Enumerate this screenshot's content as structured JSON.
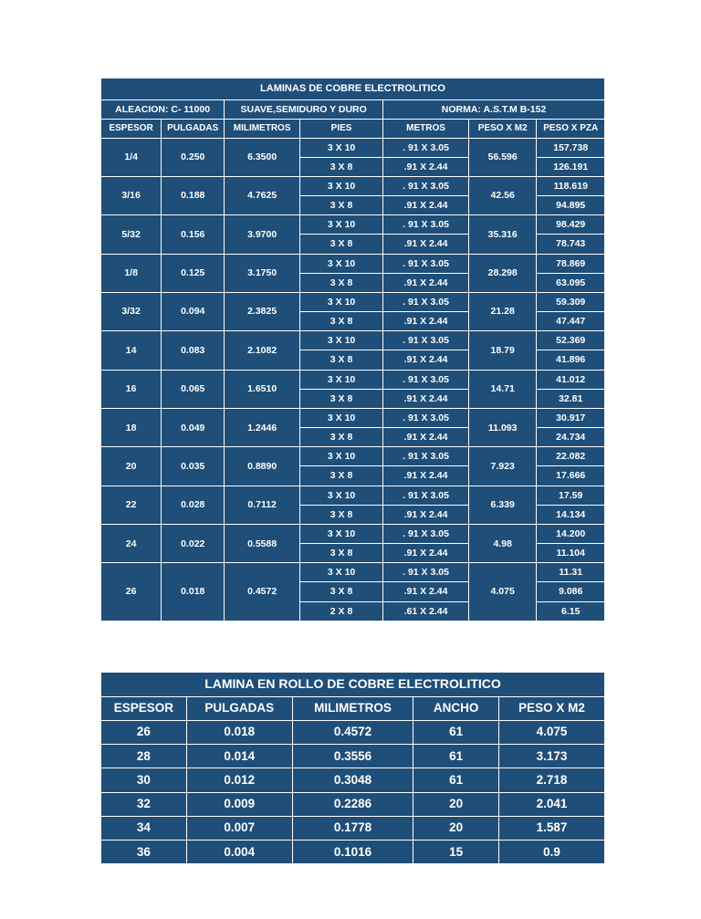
{
  "colors": {
    "bg_cell": "#1f4e79",
    "border": "#ffffff",
    "text": "#ffffff",
    "page_bg": "#ffffff"
  },
  "table1": {
    "title": "LAMINAS DE COBRE ELECTROLITICO",
    "sub_left": "ALEACION: C- 11000",
    "sub_mid": "SUAVE,SEMIDURO Y DURO",
    "sub_right": "NORMA: A.S.T.M B-152",
    "headers": {
      "espesor": "ESPESOR",
      "pulgadas": "PULGADAS",
      "milimetros": "MILIMETROS",
      "pies": "PIES",
      "metros": "METROS",
      "peso_m2": "PESO X M2",
      "peso_pza": "PESO X PZA"
    },
    "rows": [
      {
        "espesor": "1/4",
        "pulgadas": "0.250",
        "mm": "6.3500",
        "peso_m2": "56.596",
        "sizes": [
          {
            "pies": "3 X 10",
            "metros": ". 91 X 3.05",
            "pza": "157.738"
          },
          {
            "pies": "3 X 8",
            "metros": ".91 X 2.44",
            "pza": "126.191"
          }
        ]
      },
      {
        "espesor": "3/16",
        "pulgadas": "0.188",
        "mm": "4.7625",
        "peso_m2": "42.56",
        "sizes": [
          {
            "pies": "3 X 10",
            "metros": ". 91 X 3.05",
            "pza": "118.619"
          },
          {
            "pies": "3 X 8",
            "metros": ".91 X 2.44",
            "pza": "94.895"
          }
        ]
      },
      {
        "espesor": "5/32",
        "pulgadas": "0.156",
        "mm": "3.9700",
        "peso_m2": "35.316",
        "sizes": [
          {
            "pies": "3 X 10",
            "metros": ". 91 X 3.05",
            "pza": "98.429"
          },
          {
            "pies": "3 X 8",
            "metros": ".91 X 2.44",
            "pza": "78.743"
          }
        ]
      },
      {
        "espesor": "1/8",
        "pulgadas": "0.125",
        "mm": "3.1750",
        "peso_m2": "28.298",
        "sizes": [
          {
            "pies": "3 X 10",
            "metros": ". 91 X 3.05",
            "pza": "78.869"
          },
          {
            "pies": "3 X 8",
            "metros": ".91 X 2.44",
            "pza": "63.095"
          }
        ]
      },
      {
        "espesor": "3/32",
        "pulgadas": "0.094",
        "mm": "2.3825",
        "peso_m2": "21.28",
        "sizes": [
          {
            "pies": "3 X 10",
            "metros": ". 91 X 3.05",
            "pza": "59.309"
          },
          {
            "pies": "3 X 8",
            "metros": ".91 X 2.44",
            "pza": "47.447"
          }
        ]
      },
      {
        "espesor": "14",
        "pulgadas": "0.083",
        "mm": "2.1082",
        "peso_m2": "18.79",
        "sizes": [
          {
            "pies": "3 X 10",
            "metros": ". 91 X 3.05",
            "pza": "52.369"
          },
          {
            "pies": "3 X 8",
            "metros": ".91 X 2.44",
            "pza": "41.896"
          }
        ]
      },
      {
        "espesor": "16",
        "pulgadas": "0.065",
        "mm": "1.6510",
        "peso_m2": "14.71",
        "sizes": [
          {
            "pies": "3 X 10",
            "metros": ". 91 X 3.05",
            "pza": "41.012"
          },
          {
            "pies": "3 X 8",
            "metros": ".91 X 2.44",
            "pza": "32.81"
          }
        ]
      },
      {
        "espesor": "18",
        "pulgadas": "0.049",
        "mm": "1.2446",
        "peso_m2": "11.093",
        "sizes": [
          {
            "pies": "3 X 10",
            "metros": ". 91 X 3.05",
            "pza": "30.917"
          },
          {
            "pies": "3 X 8",
            "metros": ".91 X 2.44",
            "pza": "24.734"
          }
        ]
      },
      {
        "espesor": "20",
        "pulgadas": "0.035",
        "mm": "0.8890",
        "peso_m2": "7.923",
        "sizes": [
          {
            "pies": "3 X 10",
            "metros": ". 91 X 3.05",
            "pza": "22.082"
          },
          {
            "pies": "3 X 8",
            "metros": ".91 X 2.44",
            "pza": "17.666"
          }
        ]
      },
      {
        "espesor": "22",
        "pulgadas": "0.028",
        "mm": "0.7112",
        "peso_m2": "6.339",
        "sizes": [
          {
            "pies": "3 X 10",
            "metros": ". 91 X 3.05",
            "pza": "17.59"
          },
          {
            "pies": "3 X 8",
            "metros": ".91 X 2.44",
            "pza": "14.134"
          }
        ]
      },
      {
        "espesor": "24",
        "pulgadas": "0.022",
        "mm": "0.5588",
        "peso_m2": "4.98",
        "sizes": [
          {
            "pies": "3 X 10",
            "metros": ". 91 X 3.05",
            "pza": "14.200"
          },
          {
            "pies": "3 X 8",
            "metros": ".91 X 2.44",
            "pza": "11.104"
          }
        ]
      },
      {
        "espesor": "26",
        "pulgadas": "0.018",
        "mm": "0.4572",
        "peso_m2": "4.075",
        "sizes": [
          {
            "pies": "3 X 10",
            "metros": ". 91 X 3.05",
            "pza": "11.31"
          },
          {
            "pies": "3 X 8",
            "metros": ".91 X 2.44",
            "pza": "9.086"
          },
          {
            "pies": "2 X 8",
            "metros": ".61 X 2.44",
            "pza": "6.15"
          }
        ]
      }
    ]
  },
  "table2": {
    "title": "LAMINA EN ROLLO DE COBRE ELECTROLITICO",
    "headers": {
      "espesor": "ESPESOR",
      "pulgadas": "PULGADAS",
      "milimetros": "MILIMETROS",
      "ancho": "ANCHO",
      "peso_m2": "PESO X M2"
    },
    "rows": [
      {
        "espesor": "26",
        "pulgadas": "0.018",
        "mm": "0.4572",
        "ancho": "61",
        "peso": "4.075"
      },
      {
        "espesor": "28",
        "pulgadas": "0.014",
        "mm": "0.3556",
        "ancho": "61",
        "peso": "3.173"
      },
      {
        "espesor": "30",
        "pulgadas": "0.012",
        "mm": "0.3048",
        "ancho": "61",
        "peso": "2.718"
      },
      {
        "espesor": "32",
        "pulgadas": "0.009",
        "mm": "0.2286",
        "ancho": "20",
        "peso": "2.041"
      },
      {
        "espesor": "34",
        "pulgadas": "0.007",
        "mm": "0.1778",
        "ancho": "20",
        "peso": "1.587"
      },
      {
        "espesor": "36",
        "pulgadas": "0.004",
        "mm": "0.1016",
        "ancho": "15",
        "peso": "0.9"
      }
    ]
  }
}
